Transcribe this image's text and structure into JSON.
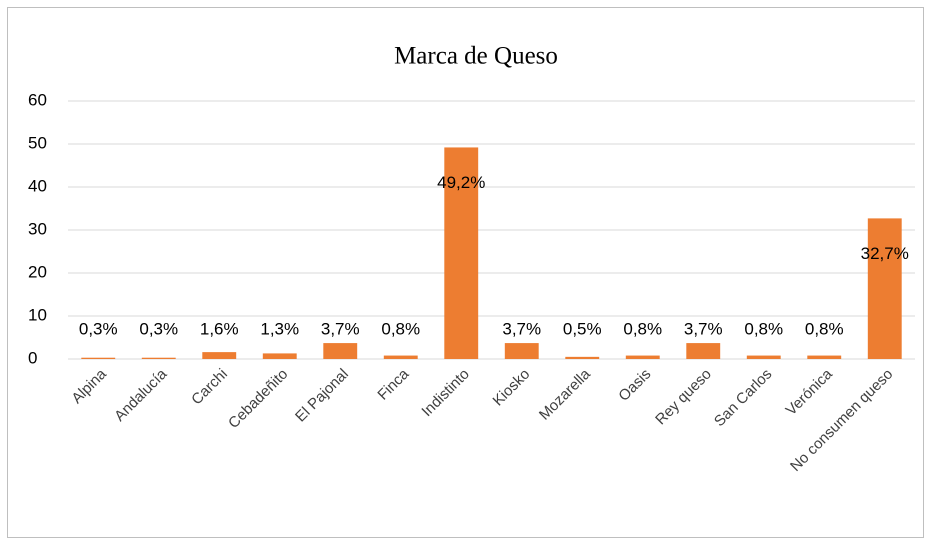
{
  "chart_data": {
    "type": "bar",
    "title": "Marca de Queso",
    "categories": [
      "Alpina",
      "Andalucía",
      "Carchi",
      "Cebadeñito",
      "El Pajonal",
      "Finca",
      "Indistinto",
      "Kiosko",
      "Mozarella",
      "Oasis",
      "Rey queso",
      "San Carlos",
      "Verónica",
      "No consumen queso"
    ],
    "values": [
      0.3,
      0.3,
      1.6,
      1.3,
      3.7,
      0.8,
      49.2,
      3.7,
      0.5,
      0.8,
      3.7,
      0.8,
      0.8,
      32.7
    ],
    "value_labels": [
      "0,3%",
      "0,3%",
      "1,6%",
      "1,3%",
      "3,7%",
      "0,8%",
      "49,2%",
      "3,7%",
      "0,5%",
      "0,8%",
      "3,7%",
      "0,8%",
      "0,8%",
      "32,7%"
    ],
    "color": "#ed7d31",
    "ylim": [
      0,
      60
    ],
    "yticks": [
      0,
      10,
      20,
      30,
      40,
      50,
      60
    ],
    "grid": true
  }
}
